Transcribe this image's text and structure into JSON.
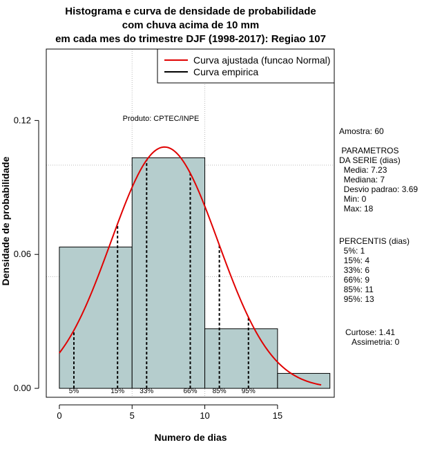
{
  "chart_data": {
    "type": "histogram",
    "title_lines": [
      "Histograma e curva de densidade de probabilidade",
      "com chuva acima de 10 mm",
      "em cada mes do trimestre DJF (1998-2017): Regiao 107"
    ],
    "xlabel": "Numero de dias",
    "ylabel": "Densidade de probabilidade",
    "xlim": [
      -0.9,
      18.9
    ],
    "ylim": [
      -0.004,
      0.152
    ],
    "xticks": [
      0,
      5,
      10,
      15
    ],
    "yticks": [
      0.0,
      0.06,
      0.12
    ],
    "ytick_labels": [
      "0.00",
      "0.06",
      "0.12"
    ],
    "grid_y": [
      0.05,
      0.1
    ],
    "grid_x": [
      5,
      10
    ],
    "bins": [
      {
        "from": 0,
        "to": 5,
        "density": 0.0633
      },
      {
        "from": 5,
        "to": 10,
        "density": 0.1033
      },
      {
        "from": 10,
        "to": 15,
        "density": 0.0267
      },
      {
        "from": 15,
        "to": 18.6,
        "density": 0.0067
      }
    ],
    "fit_curve": {
      "name": "Curva ajustada (funcao Normal)",
      "mean": 7.23,
      "sd": 3.69,
      "x_range": [
        0,
        18
      ],
      "color": "#e00000"
    },
    "percentiles": [
      {
        "label": "5%",
        "x": 1
      },
      {
        "label": "15%",
        "x": 4
      },
      {
        "label": "33%",
        "x": 6
      },
      {
        "label": "66%",
        "x": 9
      },
      {
        "label": "85%",
        "x": 11
      },
      {
        "label": "95%",
        "x": 13
      }
    ],
    "legend": [
      {
        "label": "Curva ajustada (funcao Normal)",
        "color": "#e00000"
      },
      {
        "label": "Curva empirica",
        "color": "#000000"
      }
    ],
    "legend_position": "top-right",
    "annotation": "Produto: CPTEC/INPE",
    "bar_color": "#b5cdcd"
  },
  "stats_panel": {
    "amostra": "Amostra: 60",
    "parametros_title": [
      " PARAMETROS",
      "DA SERIE (dias)"
    ],
    "parametros": [
      "  Media: 7.23",
      "  Mediana: 7",
      "  Desvio padrao: 3.69",
      "  Min: 0",
      "  Max: 18"
    ],
    "percentis_title": "PERCENTIS (dias)",
    "percentis": [
      "  5%: 1",
      "  15%: 4",
      "  33%: 6",
      "  66%: 9",
      "  85%: 11",
      "  95%: 13"
    ],
    "curtose": "Curtose: 1.41",
    "assimetria": "Assimetria: 0"
  }
}
